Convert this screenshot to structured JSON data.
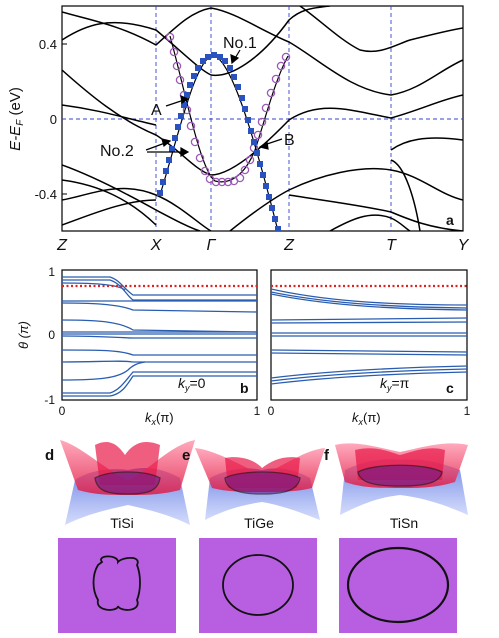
{
  "panel_a": {
    "letter": "a",
    "y_axis_label": "E-E",
    "y_axis_subscript": "F",
    "y_axis_unit": " (eV)",
    "y_ticks": [
      "0.4",
      "0",
      "-0.4"
    ],
    "x_ticks": [
      "Z",
      "X",
      "Γ",
      "Z",
      "T",
      "Y"
    ],
    "annotations": {
      "no1": "No.1",
      "no2": "No.2",
      "A": "A",
      "B": "B"
    }
  },
  "panel_b": {
    "letter": "b",
    "ky_label": "k",
    "ky_sub": "y",
    "ky_value": "=0",
    "x_ticks": [
      "0",
      "1"
    ],
    "x_label": "k",
    "x_sub": "x",
    "x_unit": "(π)"
  },
  "panel_c": {
    "letter": "c",
    "ky_label": "k",
    "ky_sub": "y",
    "ky_value": "=π",
    "x_ticks": [
      "0",
      "1"
    ],
    "x_label": "k",
    "x_sub": "x",
    "x_unit": "(π)"
  },
  "theta_axis": {
    "label": "θ (π)",
    "ticks": [
      "1",
      "0",
      "-1"
    ]
  },
  "surfaces": [
    {
      "letter": "d",
      "material": "TiSi"
    },
    {
      "letter": "e",
      "material": "TiGe"
    },
    {
      "letter": "f",
      "material": "TiSn"
    }
  ],
  "colors": {
    "band": "#000000",
    "no1": "#9b59b6",
    "no2": "#2a52be",
    "wilson": "#2a5db0",
    "dashed": "#3344cc",
    "reference": "#dd2222",
    "bz_square": "#b75fe0",
    "red_surface": "#f0305a",
    "blue_surface": "#4060e0"
  }
}
